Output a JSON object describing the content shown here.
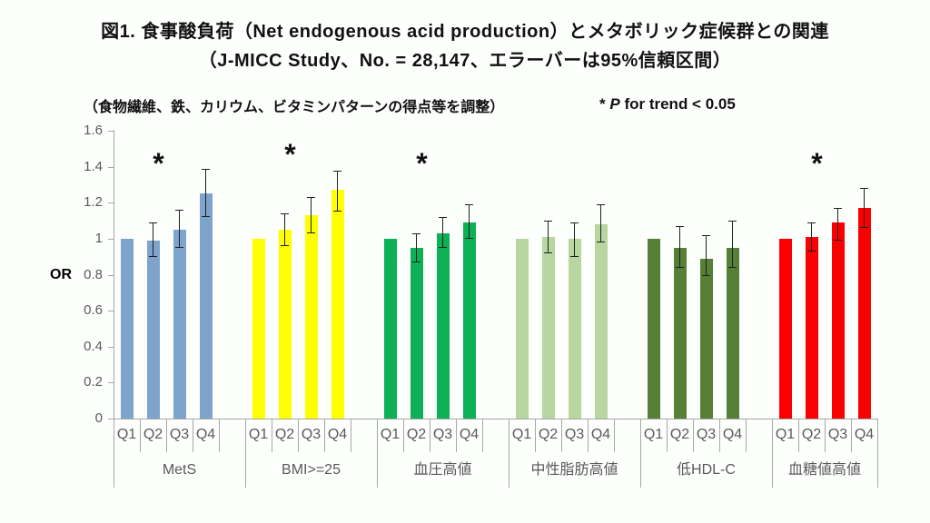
{
  "title_line1": "図1. 食事酸負荷（Net endogenous acid production）とメタボリック症候群との関連",
  "title_line2": "（J-MICC Study、No. = 28,147、エラーバーは95%信頼区間）",
  "adjustment_note": "（食物繊維、鉄、カリウム、ビタミンパターンの得点等を調整）",
  "significance_note": {
    "symbol": "*",
    "p": "P",
    "rest": "for trend < 0.05"
  },
  "chart_data": {
    "type": "bar",
    "title": "食事酸負荷とメタボリック症候群との関連",
    "ylabel": "OR",
    "xlabel": "",
    "ylim": [
      0,
      1.6
    ],
    "yticks": [
      0,
      0.2,
      0.4,
      0.6,
      0.8,
      1,
      1.2,
      1.4,
      1.6
    ],
    "grid": false,
    "error_bars": "95% CI",
    "subcategories": [
      "Q1",
      "Q2",
      "Q3",
      "Q4"
    ],
    "significance_symbol": "*",
    "groups": [
      {
        "label": "MetS",
        "color": "#7ea4ce",
        "significant": true,
        "values": [
          1.0,
          0.99,
          1.05,
          1.25
        ],
        "ci_low": [
          null,
          0.9,
          0.95,
          1.12
        ],
        "ci_high": [
          null,
          1.09,
          1.16,
          1.39
        ]
      },
      {
        "label": "BMI>=25",
        "color": "#ffff00",
        "significant": true,
        "values": [
          1.0,
          1.05,
          1.13,
          1.27
        ],
        "ci_low": [
          null,
          0.96,
          1.03,
          1.15
        ],
        "ci_high": [
          null,
          1.14,
          1.23,
          1.38
        ]
      },
      {
        "label": "血圧高値",
        "color": "#0db055",
        "significant": true,
        "values": [
          1.0,
          0.95,
          1.03,
          1.09
        ],
        "ci_low": [
          null,
          0.87,
          0.95,
          1.0
        ],
        "ci_high": [
          null,
          1.03,
          1.12,
          1.19
        ]
      },
      {
        "label": "中性脂肪高値",
        "color": "#b7d6a0",
        "significant": false,
        "values": [
          1.0,
          1.01,
          1.0,
          1.08
        ],
        "ci_low": [
          null,
          0.92,
          0.9,
          0.98
        ],
        "ci_high": [
          null,
          1.1,
          1.09,
          1.19
        ]
      },
      {
        "label": "低HDL-C",
        "color": "#568035",
        "significant": false,
        "values": [
          1.0,
          0.95,
          0.89,
          0.95
        ],
        "ci_low": [
          null,
          0.84,
          0.79,
          0.84
        ],
        "ci_high": [
          null,
          1.07,
          1.02,
          1.1
        ]
      },
      {
        "label": "血糖値高値",
        "color": "#fb0000",
        "significant": true,
        "values": [
          1.0,
          1.01,
          1.09,
          1.17
        ],
        "ci_low": [
          null,
          0.93,
          0.99,
          1.06
        ],
        "ci_high": [
          null,
          1.09,
          1.17,
          1.28
        ]
      }
    ]
  }
}
